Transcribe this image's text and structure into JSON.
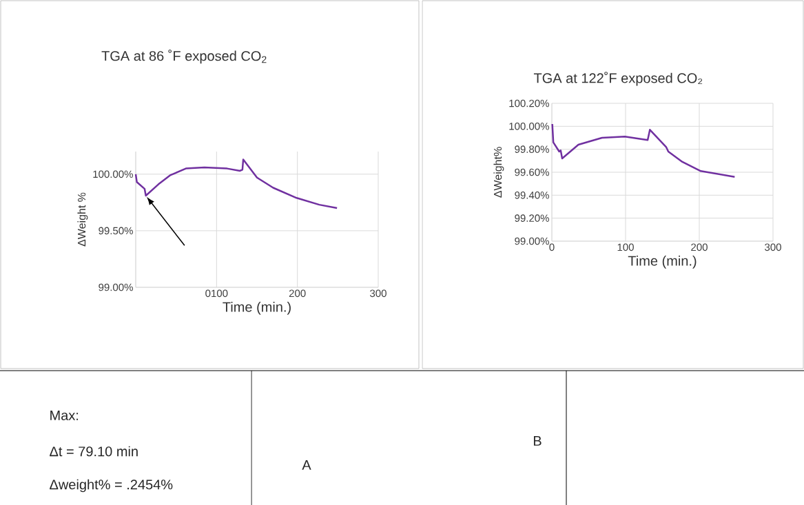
{
  "chart_data": [
    {
      "type": "line",
      "title": "TGA at 86 ˚F exposed CO$_{2}$",
      "xlabel": "Time (min.)",
      "ylabel": "ΔWeight %",
      "x": [
        0,
        1.4,
        11,
        12.5,
        28,
        42.5,
        62,
        85,
        113,
        129,
        132,
        133,
        150,
        170,
        199,
        227,
        249
      ],
      "series": [
        {
          "color": "#7030a0",
          "values": [
            100.0,
            99.93,
            99.87,
            99.81,
            99.91,
            99.99,
            100.05,
            100.06,
            100.05,
            100.03,
            100.04,
            100.13,
            99.97,
            99.88,
            99.79,
            99.73,
            99.7
          ]
        }
      ],
      "xlim": [
        0,
        300
      ],
      "ylim": [
        99.0,
        100.2
      ],
      "xticks": [
        {
          "value": 0,
          "label": null
        },
        {
          "value": 100,
          "label": "0100"
        },
        200,
        300
      ],
      "yticks": [
        {
          "value": 99.0,
          "label": "99.00%"
        },
        {
          "value": 99.5,
          "label": "99.50%"
        },
        {
          "value": 100.0,
          "label": "100.00%"
        }
      ],
      "grid": true,
      "marker": "none",
      "line_style": "solid",
      "annotations": [
        "Max:",
        "Δt = 79.10 min",
        "Δweight% = .2454%",
        "A"
      ]
    },
    {
      "type": "line",
      "title": "TGA at 122˚F exposed CO₂",
      "xlabel": "Time (min.)",
      "ylabel": "ΔWeight%",
      "x": [
        0.6,
        2,
        10,
        12,
        14,
        36,
        68,
        99,
        130,
        133,
        155,
        158,
        177,
        202,
        248
      ],
      "series": [
        {
          "color": "#7030a0",
          "values": [
            100.02,
            99.86,
            99.78,
            99.79,
            99.72,
            99.84,
            99.9,
            99.91,
            99.88,
            99.97,
            99.82,
            99.78,
            99.69,
            99.61,
            99.56
          ]
        }
      ],
      "xlim": [
        0,
        300
      ],
      "ylim": [
        99.0,
        100.2
      ],
      "xticks": [
        0,
        100,
        200,
        300
      ],
      "yticks": [
        {
          "value": 99.0,
          "label": "99.00%"
        },
        {
          "value": 99.2,
          "label": "99.20%"
        },
        {
          "value": 99.4,
          "label": "99.40%"
        },
        {
          "value": 99.6,
          "label": "99.60%"
        },
        {
          "value": 99.8,
          "label": "99.80%"
        },
        {
          "value": 100.0,
          "label": "100.00%"
        },
        {
          "value": 100.2,
          "label": "100.20%"
        }
      ],
      "grid": true,
      "marker": "none",
      "line_style": "solid",
      "annotations": [
        "B"
      ]
    }
  ]
}
